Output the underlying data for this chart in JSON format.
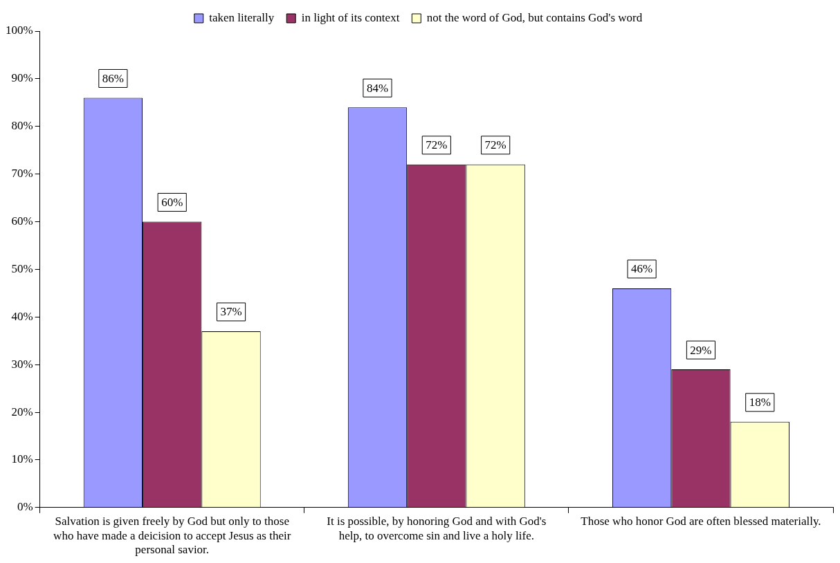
{
  "chart_data": {
    "type": "bar",
    "categories": [
      "Salvation is given freely by God but only to those who have made a deicision to accept Jesus as their personal savior.",
      "It is possible, by honoring God and with God's help, to overcome sin and live a holy life.",
      "Those who honor God are often blessed materially."
    ],
    "series": [
      {
        "name": "taken literally",
        "color": "#9999ff",
        "values": [
          86,
          84,
          46
        ],
        "value_labels": [
          "86%",
          "84%",
          "46%"
        ]
      },
      {
        "name": "in light of its context",
        "color": "#993366",
        "values": [
          60,
          72,
          29
        ],
        "value_labels": [
          "60%",
          "72%",
          "29%"
        ]
      },
      {
        "name": "not the word of God, but contains God's word",
        "color": "#ffffcc",
        "values": [
          37,
          72,
          18
        ],
        "value_labels": [
          "37%",
          "72%",
          "18%"
        ]
      }
    ],
    "ylim": [
      0,
      100
    ],
    "yticks": [
      {
        "value": 0,
        "label": "0%"
      },
      {
        "value": 10,
        "label": "10%"
      },
      {
        "value": 20,
        "label": "20%"
      },
      {
        "value": 30,
        "label": "30%"
      },
      {
        "value": 40,
        "label": "40%"
      },
      {
        "value": 50,
        "label": "50%"
      },
      {
        "value": 60,
        "label": "60%"
      },
      {
        "value": 70,
        "label": "70%"
      },
      {
        "value": 80,
        "label": "80%"
      },
      {
        "value": 90,
        "label": "90%"
      },
      {
        "value": 100,
        "label": "100%"
      }
    ],
    "grid": false,
    "legend": "top"
  }
}
